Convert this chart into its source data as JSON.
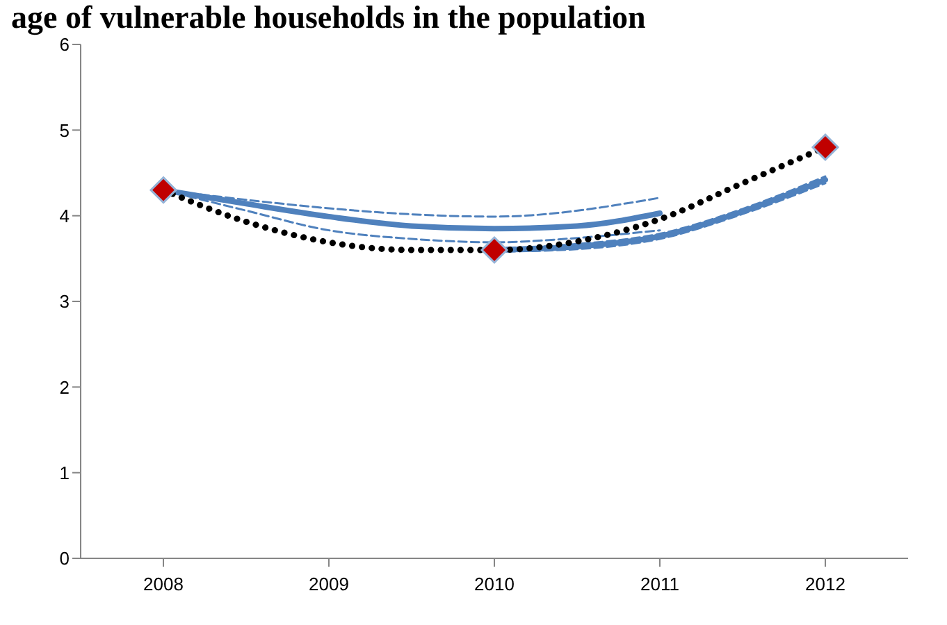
{
  "chart_data": {
    "type": "line",
    "title": "age of vulnerable households in the population",
    "xlim": [
      2007.5,
      2012.5
    ],
    "xticks": [
      2008,
      2009,
      2010,
      2011,
      2012
    ],
    "ylim": [
      0,
      6
    ],
    "yticks": [
      0,
      1,
      2,
      3,
      4,
      5,
      6
    ],
    "grid": false,
    "legend": false,
    "series": [
      {
        "color": "#4f81bd",
        "line_style": "dashed",
        "marker": "none",
        "x": [
          2008,
          2010,
          2011
        ],
        "values": [
          4.3,
          3.99,
          4.21
        ]
      },
      {
        "color": "#4f81bd",
        "line_style": "dashed",
        "marker": "none",
        "x": [
          2008,
          2008.5,
          2009,
          2009.5,
          2010,
          2010.5,
          2011
        ],
        "values": [
          4.3,
          4.06,
          3.83,
          3.73,
          3.69,
          3.74,
          3.83
        ]
      },
      {
        "color": "#4f81bd",
        "line_style": "solid",
        "marker": "none",
        "x": [
          2008,
          2008.5,
          2009,
          2009.5,
          2010,
          2010.5,
          2011
        ],
        "values": [
          4.3,
          4.14,
          3.99,
          3.88,
          3.85,
          3.88,
          4.03
        ]
      },
      {
        "color": "#4f81bd",
        "line_style": "dashed",
        "marker": "none",
        "x": [
          2010,
          2010.5,
          2011,
          2011.5,
          2012
        ],
        "values": [
          3.62,
          3.67,
          3.79,
          4.08,
          4.46
        ]
      },
      {
        "color": "#4f81bd",
        "line_style": "dashed",
        "marker": "none",
        "x": [
          2010,
          2010.5,
          2011,
          2011.5,
          2012
        ],
        "values": [
          3.58,
          3.61,
          3.73,
          4.02,
          4.38
        ]
      },
      {
        "color": "#4f81bd",
        "line_style": "solid",
        "marker": "none",
        "x": [
          2010,
          2010.5,
          2011,
          2011.5,
          2012
        ],
        "values": [
          3.6,
          3.64,
          3.76,
          4.05,
          4.42
        ]
      },
      {
        "color": "#000000",
        "line_style": "dotted",
        "marker": "none",
        "x": [
          2008,
          2008.5,
          2009,
          2009.5,
          2010,
          2010.5,
          2011,
          2011.5,
          2012
        ],
        "values": [
          4.3,
          3.93,
          3.69,
          3.6,
          3.6,
          3.7,
          3.96,
          4.38,
          4.8
        ]
      },
      {
        "type": "scatter",
        "color": "#c00000",
        "marker": "diamond",
        "x": [
          2008,
          2010,
          2012
        ],
        "values": [
          4.3,
          3.6,
          4.8
        ]
      }
    ]
  }
}
